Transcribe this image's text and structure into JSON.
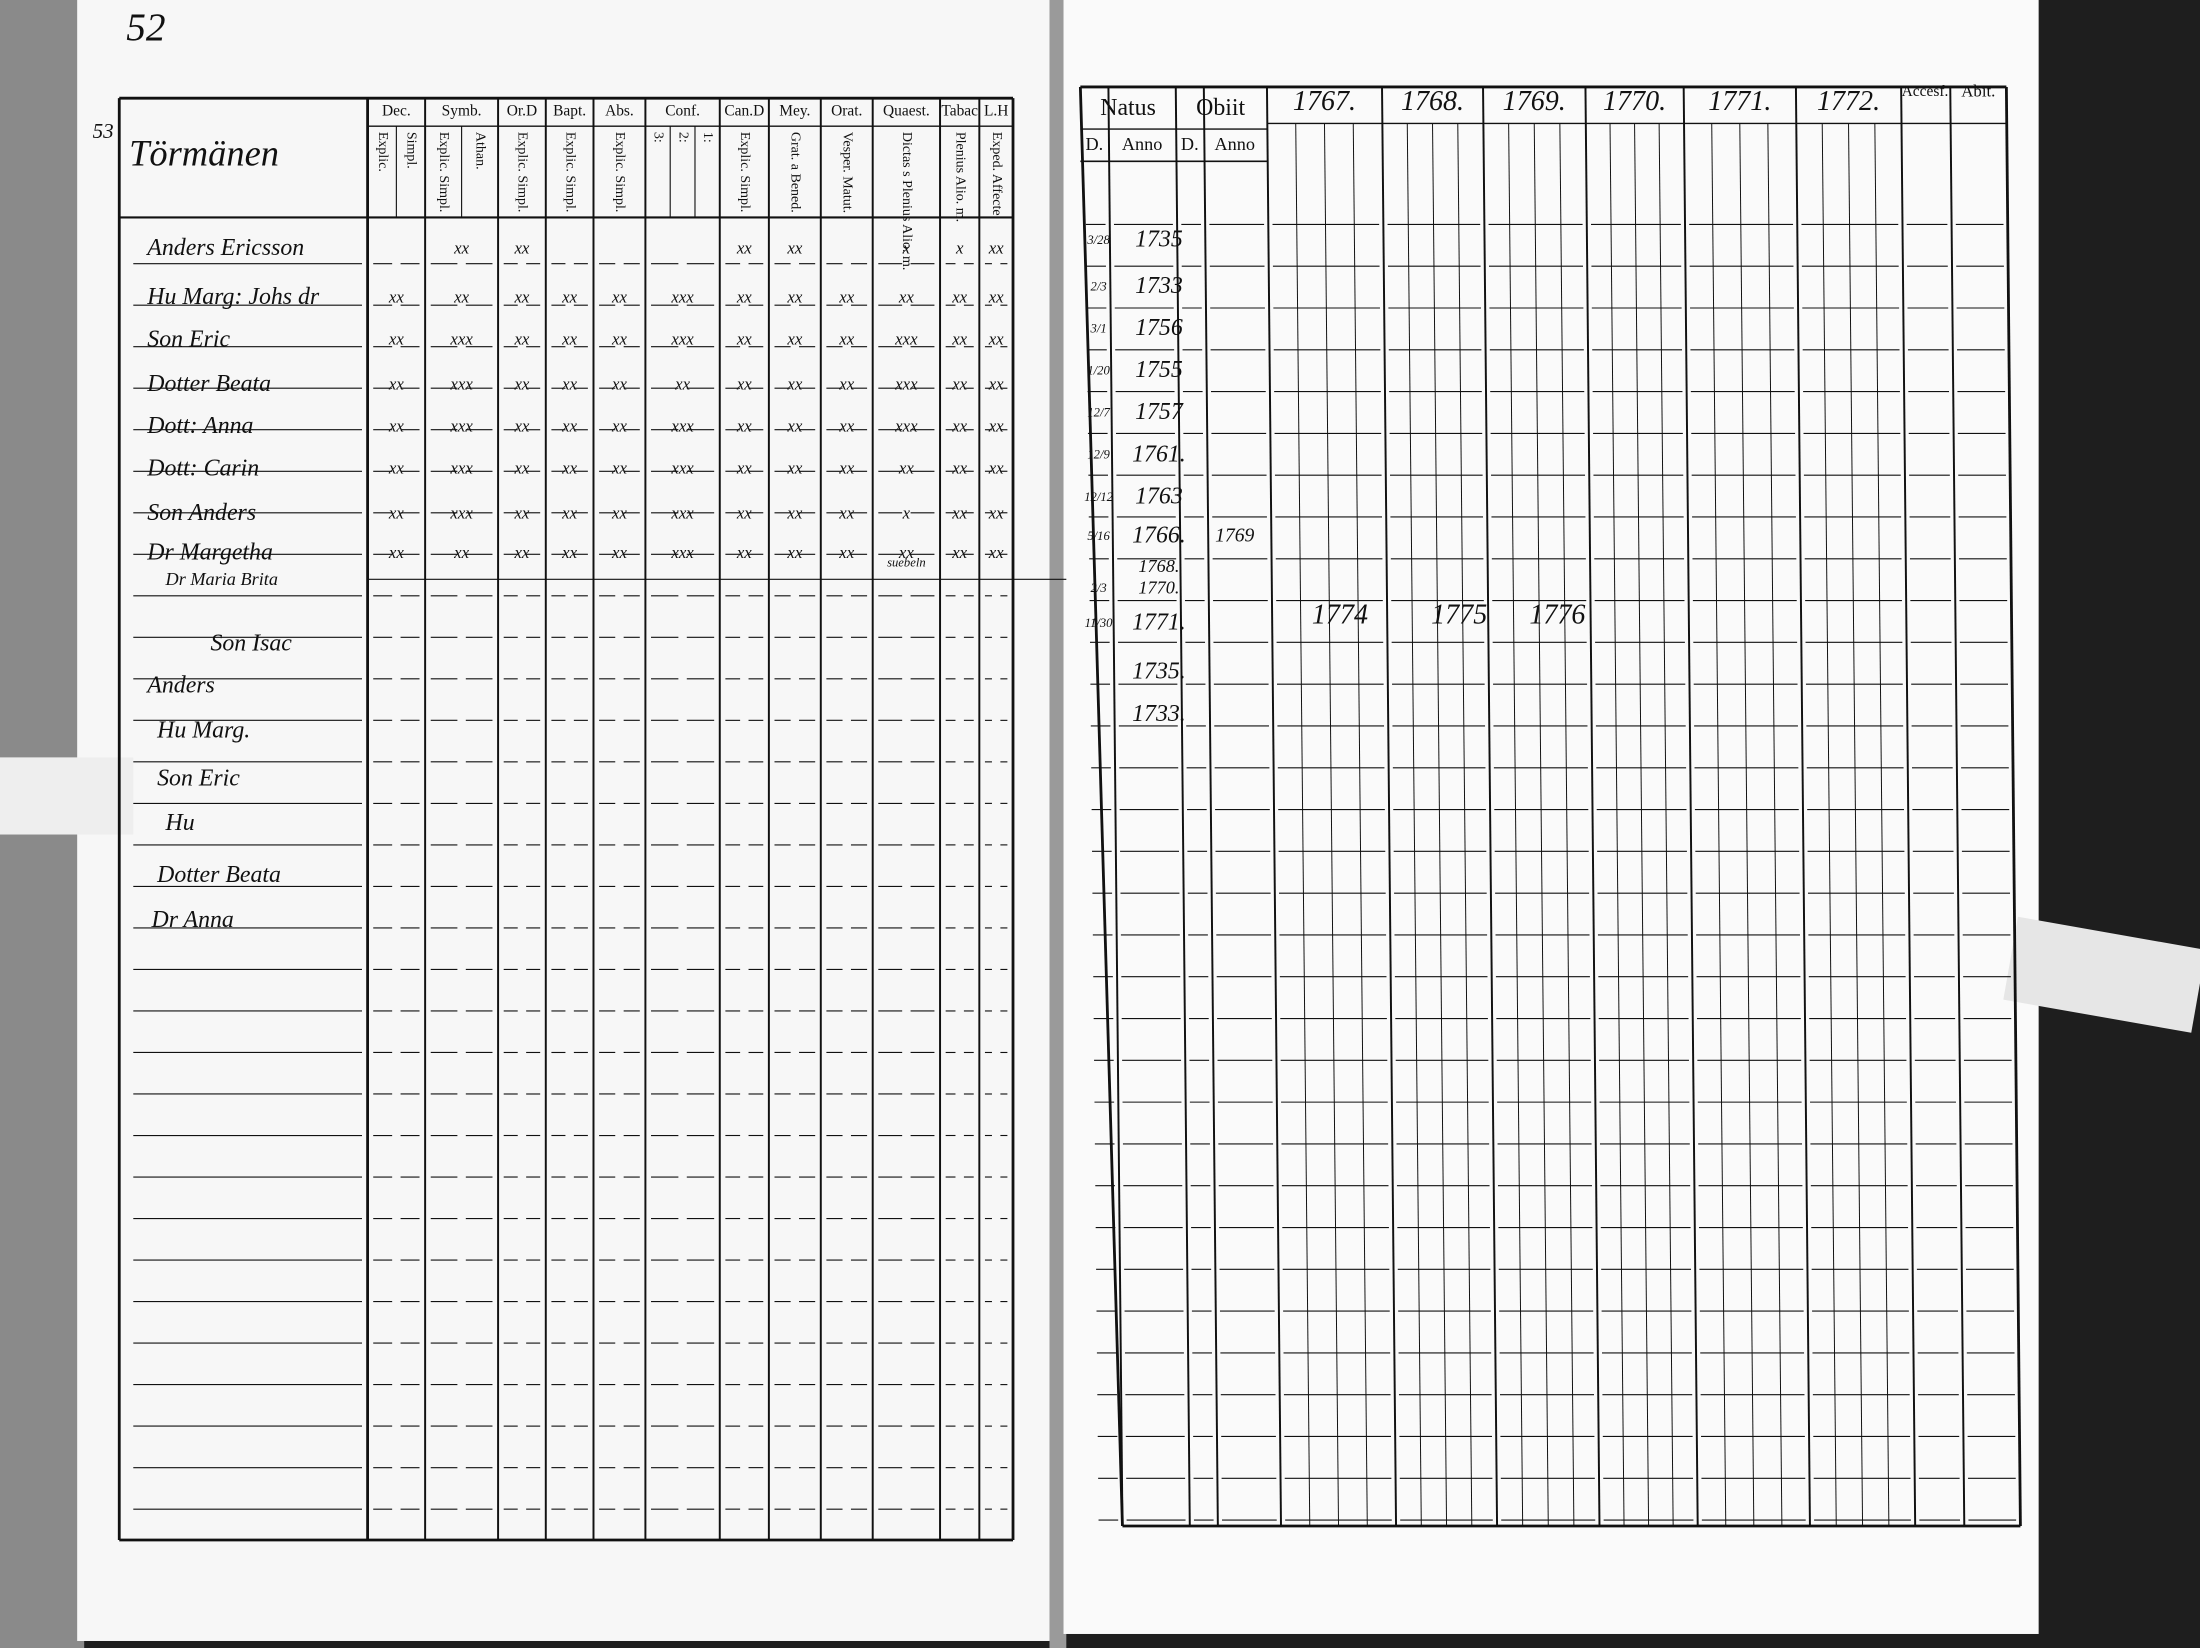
{
  "left_page": {
    "page_number": "52",
    "household_number": "53",
    "household": "Törmänen",
    "columns": [
      {
        "title": "Dec.",
        "sub": [
          "Explic.",
          "Simpl."
        ]
      },
      {
        "title": "Symb.",
        "sub": [
          "Explic. Simpl.",
          "Athan."
        ]
      },
      {
        "title": "Or.D",
        "sub": [
          "Explic. Simpl."
        ]
      },
      {
        "title": "Bapt.",
        "sub": [
          "Explic. Simpl."
        ]
      },
      {
        "title": "Abs.",
        "sub": [
          "Explic. Simpl."
        ]
      },
      {
        "title": "Conf.",
        "sub": [
          "3:",
          "2:",
          "1:"
        ]
      },
      {
        "title": "Can.D",
        "sub": [
          "Explic. Simpl."
        ]
      },
      {
        "title": "Mey.",
        "sub": [
          "Grat. a Bened."
        ]
      },
      {
        "title": "Orat.",
        "sub": [
          "Vesper. Matut."
        ]
      },
      {
        "title": "Quaest.",
        "sub": [
          "Dictas s Plenius Alio. m."
        ]
      },
      {
        "title": "Tabac",
        "sub": [
          "Plenius Alio. m."
        ]
      },
      {
        "title": "L.H",
        "sub": [
          "Exped. Affecte."
        ]
      }
    ],
    "rows": [
      {
        "name": "Anders Ericsson",
        "marks": [
          null,
          "xx",
          "xx",
          null,
          null,
          null,
          "xx",
          "xx",
          null,
          "x",
          "x",
          "xx"
        ]
      },
      {
        "name": "Hu Marg: Johs dr",
        "marks": [
          "xx",
          "xx",
          "xx",
          "xx",
          "xx",
          "xxx",
          "xx",
          "xx",
          "xx",
          "xx",
          "xx",
          "xx"
        ]
      },
      {
        "name": "Son Eric",
        "marks": [
          "xx",
          "xxx",
          "xx",
          "xx",
          "xx",
          "xxx",
          "xx",
          "xx",
          "xx",
          "xxx",
          "xx",
          "xx"
        ]
      },
      {
        "name": "Dotter Beata",
        "marks": [
          "xx",
          "xxx",
          "xx",
          "xx",
          "xx",
          "xx",
          "xx",
          "xx",
          "xx",
          "xxx",
          "xx",
          "xx"
        ]
      },
      {
        "name": "Dott: Anna",
        "marks": [
          "xx",
          "xxx",
          "xx",
          "xx",
          "xx",
          "xxx",
          "xx",
          "xx",
          "xx",
          "xxx",
          "xx",
          "xx"
        ]
      },
      {
        "name": "Dott: Carin",
        "marks": [
          "xx",
          "xxx",
          "xx",
          "xx",
          "xx",
          "xxx",
          "xx",
          "xx",
          "xx",
          "xx",
          "xx",
          "xx"
        ]
      },
      {
        "name": "Son Anders",
        "marks": [
          "xx",
          "xxx",
          "xx",
          "xx",
          "xx",
          "xxx",
          "xx",
          "xx",
          "xx",
          "x",
          "xx",
          "xx"
        ]
      },
      {
        "name": "Dr Margetha",
        "marks": [
          "xx",
          "xx",
          "xx",
          "xx",
          "xx",
          "xxx",
          "xx",
          "xx",
          "xx",
          "xx",
          "xx",
          "xx"
        ]
      },
      {
        "name": "Dr Maria Brita",
        "marks": [
          null,
          null,
          null,
          null,
          null,
          null,
          null,
          null,
          null,
          null,
          null,
          null
        ]
      },
      {
        "name": "Son Isac",
        "marks": [
          null,
          null,
          null,
          null,
          null,
          null,
          null,
          null,
          null,
          null,
          null,
          null
        ]
      },
      {
        "name": "Anders",
        "marks": [
          null,
          null,
          null,
          null,
          null,
          null,
          null,
          null,
          null,
          null,
          null,
          null
        ]
      },
      {
        "name": "Hu Marg.",
        "marks": [
          null,
          null,
          null,
          null,
          null,
          null,
          null,
          null,
          null,
          null,
          null,
          null
        ]
      },
      {
        "name": "Son Eric",
        "marks": [
          null,
          null,
          null,
          null,
          null,
          null,
          null,
          null,
          null,
          null,
          null,
          null
        ]
      },
      {
        "name": "Hu",
        "marks": [
          null,
          null,
          null,
          null,
          null,
          null,
          null,
          null,
          null,
          null,
          null,
          null
        ]
      },
      {
        "name": "Dotter Beata",
        "marks": [
          null,
          null,
          null,
          null,
          null,
          null,
          null,
          null,
          null,
          null,
          null,
          null
        ]
      },
      {
        "name": "Dr Anna",
        "marks": [
          null,
          null,
          null,
          null,
          null,
          null,
          null,
          null,
          null,
          null,
          null,
          null
        ]
      }
    ],
    "note": "suebeln"
  },
  "right_page": {
    "natus": "Natus",
    "obiit": "Obiit",
    "day": "D.",
    "anno": "Anno",
    "years": [
      "1767.",
      "1768.",
      "1769.",
      "1770.",
      "1771.",
      "1772."
    ],
    "accessit": "Accesf.",
    "abiit": "Abit.",
    "later_years": [
      "1774",
      "1775",
      "1776"
    ],
    "rows": [
      {
        "day": "3/28",
        "year": "1735",
        "death": null
      },
      {
        "day": "2/3",
        "year": "1733",
        "death": null
      },
      {
        "day": "3/1",
        "year": "1756",
        "death": null
      },
      {
        "day": "1/20",
        "year": "1755",
        "death": null
      },
      {
        "day": "12/7",
        "year": "1757",
        "death": null
      },
      {
        "day": "12/9",
        "year": "1761.",
        "death": null
      },
      {
        "day": "12/12",
        "year": "1763",
        "death": null
      },
      {
        "day": "5/16",
        "year": "1766.",
        "death": "1769"
      },
      {
        "day": null,
        "year": "1768.",
        "death": null
      },
      {
        "day": "2/3",
        "year": "1770.",
        "death": null
      },
      {
        "day": "11/30",
        "year": "1771.",
        "death": null
      },
      {
        "day": null,
        "year": "1735.",
        "death": null
      },
      {
        "day": null,
        "year": "1733.",
        "death": null
      }
    ]
  }
}
